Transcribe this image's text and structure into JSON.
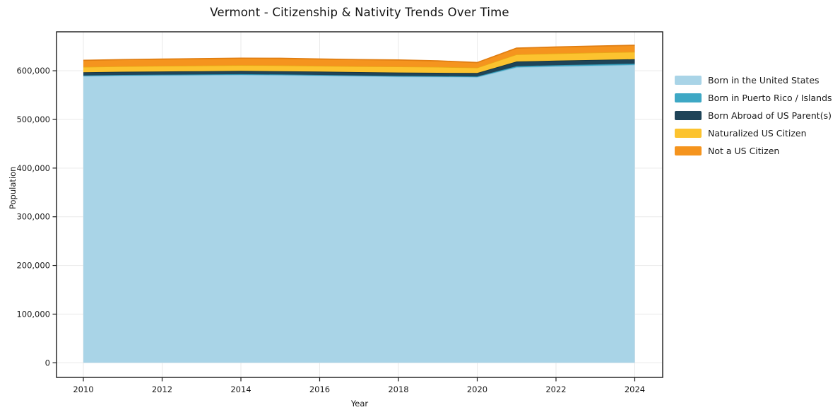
{
  "figure": {
    "background": "#ffffff",
    "grid_color": "#e9e9e9",
    "spine_color": "#1a1a1a"
  },
  "axes": {
    "x_ticks": [
      {
        "value": 2010,
        "label": "2010"
      },
      {
        "value": 2012,
        "label": "2012"
      },
      {
        "value": 2014,
        "label": "2014"
      },
      {
        "value": 2016,
        "label": "2016"
      },
      {
        "value": 2018,
        "label": "2018"
      },
      {
        "value": 2020,
        "label": "2020"
      },
      {
        "value": 2022,
        "label": "2022"
      },
      {
        "value": 2024,
        "label": "2024"
      }
    ],
    "y_ticks": [
      {
        "value": 0,
        "label": "0"
      },
      {
        "value": 100000,
        "label": "100,000"
      },
      {
        "value": 200000,
        "label": "200,000"
      },
      {
        "value": 300000,
        "label": "300,000"
      },
      {
        "value": 400000,
        "label": "400,000"
      },
      {
        "value": 500000,
        "label": "500,000"
      },
      {
        "value": 600000,
        "label": "600,000"
      }
    ]
  },
  "chart_data": {
    "type": "area",
    "stacked": true,
    "title": "Vermont - Citizenship & Nativity Trends Over Time",
    "xlabel": "Year",
    "ylabel": "Population",
    "x": [
      2010,
      2011,
      2012,
      2013,
      2014,
      2015,
      2016,
      2017,
      2018,
      2019,
      2020,
      2021,
      2022,
      2023,
      2024
    ],
    "series": [
      {
        "name": "Born in the United States",
        "color": "#A9D4E7",
        "edge_color": "#93C4DB",
        "values": [
          589000,
          590000,
          590500,
          591000,
          591500,
          591000,
          590000,
          589000,
          588000,
          587500,
          587000,
          607000,
          609000,
          610500,
          612000
        ]
      },
      {
        "name": "Born in Puerto Rico / Islands",
        "color": "#3EA8C5",
        "edge_color": "#2E93B0",
        "values": [
          1400,
          1400,
          1500,
          1500,
          1500,
          1500,
          1500,
          1400,
          1400,
          1400,
          1400,
          2500,
          2500,
          2600,
          2600
        ]
      },
      {
        "name": "Born Abroad of US Parent(s)",
        "color": "#1F4458",
        "edge_color": "#16333F",
        "values": [
          6500,
          6500,
          6600,
          6600,
          6700,
          6700,
          6800,
          6800,
          6900,
          6900,
          7000,
          9500,
          9300,
          9200,
          9000
        ]
      },
      {
        "name": "Naturalized US Citizen",
        "color": "#FCC32F",
        "edge_color": "#E9A916",
        "values": [
          11000,
          11200,
          11400,
          11500,
          11600,
          11800,
          11800,
          12000,
          12200,
          12000,
          11000,
          14500,
          14800,
          15000,
          15200
        ]
      },
      {
        "name": "Not a US Citizen",
        "color": "#F5941E",
        "edge_color": "#E07D11",
        "values": [
          13500,
          13800,
          14000,
          14200,
          14500,
          14500,
          14000,
          13800,
          13500,
          12500,
          10500,
          13000,
          13200,
          13400,
          13500
        ]
      }
    ],
    "xlim": [
      2009.3,
      2024.7
    ],
    "ylim": [
      -30000,
      680000
    ],
    "grid": true,
    "legend_position": "right"
  }
}
